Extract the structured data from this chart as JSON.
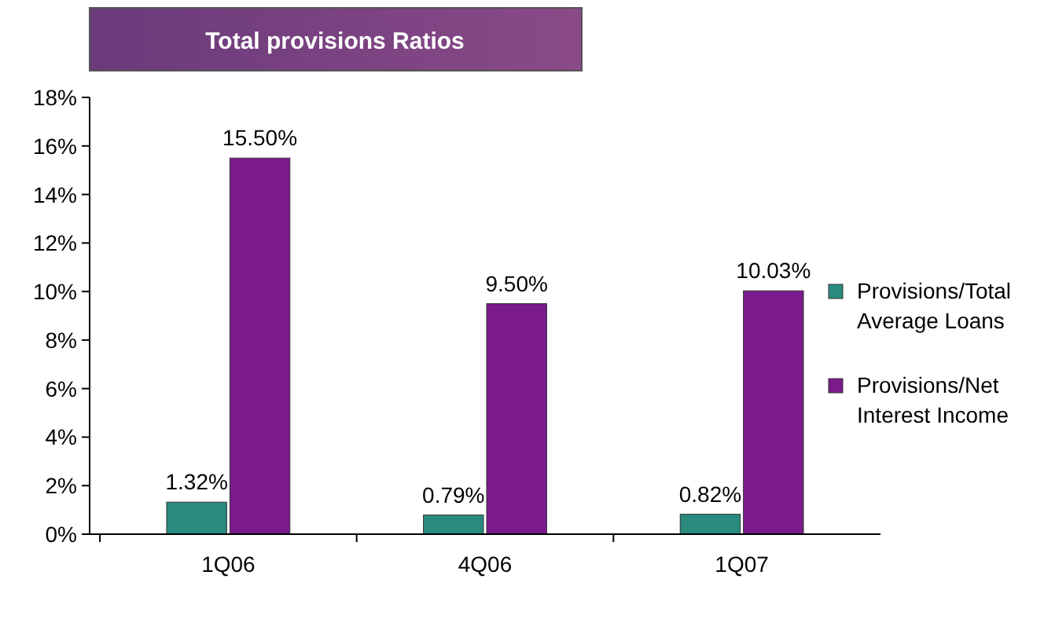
{
  "chart_data": {
    "type": "bar",
    "title": "Total provisions Ratios",
    "categories": [
      "1Q06",
      "4Q06",
      "1Q07"
    ],
    "series": [
      {
        "name": "Provisions/Total Average Loans",
        "color": "#2a8a7e",
        "values": [
          1.32,
          0.79,
          0.82
        ],
        "value_labels": [
          "1.32%",
          "0.79%",
          "0.82%"
        ]
      },
      {
        "name": "Provisions/Net Interest Income",
        "color": "#7a1a8c",
        "values": [
          15.5,
          9.5,
          10.03
        ],
        "value_labels": [
          "15.50%",
          "9.50%",
          "10.03%"
        ]
      }
    ],
    "ylim": [
      0,
      18
    ],
    "yticks": [
      {
        "value": 0,
        "label": "0%"
      },
      {
        "value": 2,
        "label": "2%"
      },
      {
        "value": 4,
        "label": "4%"
      },
      {
        "value": 6,
        "label": "6%"
      },
      {
        "value": 8,
        "label": "8%"
      },
      {
        "value": 10,
        "label": "10%"
      },
      {
        "value": 12,
        "label": "12%"
      },
      {
        "value": 14,
        "label": "14%"
      },
      {
        "value": 16,
        "label": "16%"
      },
      {
        "value": 18,
        "label": "18%"
      }
    ],
    "grid": false,
    "legend": "right"
  }
}
